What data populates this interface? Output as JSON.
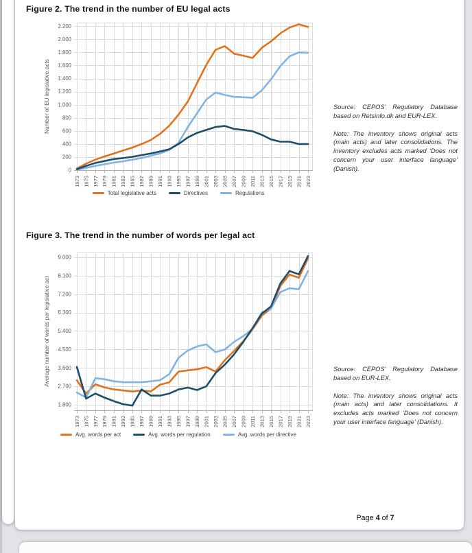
{
  "document": {
    "figures": [
      {
        "title": "Figure 2. The trend in the number of EU legal acts",
        "source_note": "Source: CEPOS’ Regulatory Database based on Retsinfo.dk and EUR-LEX.",
        "note": "Note: The inventory shows original acts (main acts) and later consolidations. The inventory excludes acts marked ‘Does not concern your user interface language’ (Danish)."
      },
      {
        "title": "Figure 3. The trend in the number of words per legal act",
        "source_note": "Source: CEPOS’ Regulatory Database based on EUR-LEX.",
        "note": "Note: The inventory shows original acts (main acts) and later consolidations. It excludes acts marked ‘Does not concern your user interface language’ (Danish)."
      }
    ],
    "footer": {
      "page_label": "Page",
      "page_number": "4",
      "of_label": "of",
      "total_pages": "7"
    }
  },
  "colors": {
    "orange": "#E0731D",
    "dark_blue": "#1F4E6B",
    "light_blue": "#82B4E2",
    "grid": "#DBDBDB",
    "axis": "#B0B0B0",
    "axis_text": "#595959"
  },
  "chart_data": [
    {
      "type": "line",
      "title": "Figure 2. The trend in the number of EU legal acts",
      "xlabel": "",
      "ylabel": "Number of EU legislative acts",
      "ylim": [
        0,
        2200
      ],
      "grid": true,
      "legend_position": "bottom",
      "x": [
        1973,
        1975,
        1977,
        1979,
        1981,
        1983,
        1985,
        1987,
        1989,
        1991,
        1993,
        1995,
        1997,
        1999,
        2001,
        2003,
        2005,
        2007,
        2009,
        2011,
        2013,
        2015,
        2017,
        2019,
        2021,
        2023
      ],
      "yticks": [
        0,
        200,
        400,
        600,
        800,
        1000,
        1200,
        1400,
        1600,
        1800,
        2000,
        2200
      ],
      "ytick_labels": [
        "0",
        "200",
        "400",
        "600",
        "800",
        "1.000",
        "1.200",
        "1.400",
        "1.600",
        "1.800",
        "2.000",
        "2.200"
      ],
      "series": [
        {
          "name": "Total legislative acts",
          "color": "#E0731D",
          "values": [
            25,
            100,
            160,
            210,
            255,
            300,
            345,
            400,
            460,
            555,
            680,
            850,
            1050,
            1330,
            1610,
            1840,
            1895,
            1780,
            1750,
            1715,
            1870,
            1970,
            2090,
            2180,
            2230,
            2190
          ]
        },
        {
          "name": "Directives",
          "color": "#1F4E6B",
          "values": [
            15,
            65,
            110,
            140,
            170,
            185,
            205,
            230,
            255,
            285,
            320,
            400,
            500,
            570,
            615,
            660,
            675,
            630,
            615,
            595,
            540,
            470,
            435,
            435,
            400,
            400
          ]
        },
        {
          "name": "Regulations",
          "color": "#82B4E2",
          "values": [
            5,
            35,
            65,
            90,
            115,
            135,
            160,
            185,
            220,
            255,
            310,
            420,
            660,
            870,
            1080,
            1185,
            1150,
            1120,
            1115,
            1105,
            1220,
            1390,
            1590,
            1740,
            1800,
            1795
          ]
        }
      ]
    },
    {
      "type": "line",
      "title": "Figure 3. The trend in the number of words per legal act",
      "xlabel": "",
      "ylabel": "Average number of words per legislative act",
      "ylim": [
        1800,
        9000
      ],
      "grid": true,
      "legend_position": "bottom",
      "x": [
        1973,
        1975,
        1977,
        1979,
        1981,
        1983,
        1985,
        1987,
        1989,
        1991,
        1993,
        1995,
        1997,
        1999,
        2001,
        2003,
        2005,
        2007,
        2009,
        2011,
        2013,
        2015,
        2017,
        2019,
        2021,
        2023
      ],
      "yticks": [
        1800,
        2700,
        3600,
        4500,
        5400,
        6300,
        7200,
        8100,
        9000
      ],
      "ytick_labels": [
        "1.800",
        "2.700",
        "3.600",
        "4.500",
        "5.400",
        "6.300",
        "7.200",
        "8.100",
        "9.000"
      ],
      "series": [
        {
          "name": "Avg. words per act",
          "color": "#E0731D",
          "values": [
            3000,
            2350,
            2800,
            2650,
            2550,
            2500,
            2450,
            2500,
            2450,
            2780,
            2900,
            3420,
            3480,
            3530,
            3640,
            3420,
            3980,
            4430,
            4900,
            5480,
            6150,
            6500,
            7600,
            8160,
            8000,
            8950
          ]
        },
        {
          "name": "Avg. words per regulation",
          "color": "#1F4E6B",
          "values": [
            3650,
            2100,
            2350,
            2150,
            1980,
            1830,
            1760,
            2550,
            2250,
            2250,
            2350,
            2550,
            2640,
            2520,
            2700,
            3350,
            3760,
            4260,
            4870,
            5540,
            6250,
            6600,
            7720,
            8330,
            8170,
            9060
          ]
        },
        {
          "name": "Avg. words per directive",
          "color": "#82B4E2",
          "values": [
            2400,
            2150,
            3100,
            3050,
            2950,
            2900,
            2900,
            2900,
            2950,
            3000,
            3300,
            4100,
            4450,
            4650,
            4750,
            4370,
            4500,
            4870,
            5150,
            5500,
            6300,
            6500,
            7300,
            7490,
            7440,
            8330
          ]
        }
      ]
    }
  ]
}
